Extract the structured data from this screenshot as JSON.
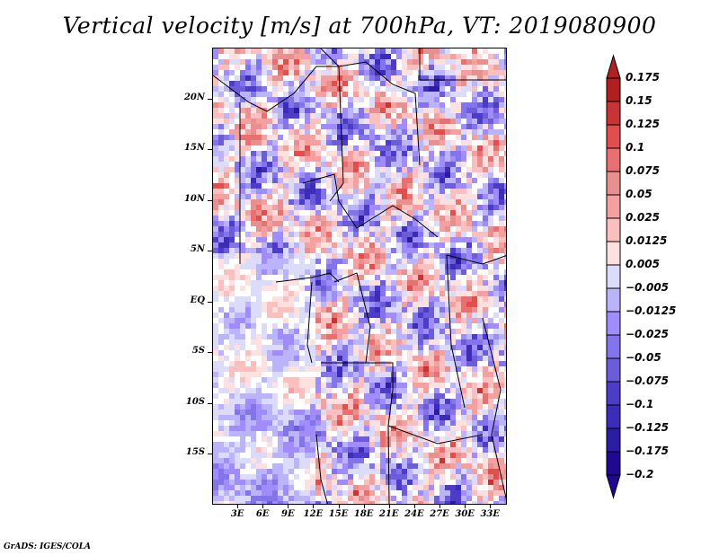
{
  "title": "Vertical velocity [m/s] at 700hPa, VT: 2019080900",
  "credit": "GrADS: IGES/COLA",
  "map": {
    "lat_labels": [
      "20N",
      "15N",
      "10N",
      "5N",
      "EQ",
      "5S",
      "10S",
      "15S"
    ],
    "lat_values": [
      20,
      15,
      10,
      5,
      0,
      -5,
      -10,
      -15
    ],
    "lat_range": [
      -20,
      25
    ],
    "lon_labels": [
      "3E",
      "6E",
      "9E",
      "12E",
      "15E",
      "18E",
      "21E",
      "24E",
      "27E",
      "30E",
      "33E"
    ],
    "lon_values": [
      3,
      6,
      9,
      12,
      15,
      18,
      21,
      24,
      27,
      30,
      33
    ],
    "lon_range": [
      0,
      35
    ],
    "field": "vertical velocity",
    "units": "m/s",
    "level": "700hPa",
    "valid_time": "2019080900"
  },
  "colorbar": {
    "labels": [
      "0.175",
      "0.15",
      "0.125",
      "0.1",
      "0.075",
      "0.05",
      "0.025",
      "0.0125",
      "0.005",
      "-0.005",
      "-0.0125",
      "-0.025",
      "-0.05",
      "-0.075",
      "-0.1",
      "-0.125",
      "-0.175",
      "-0.2"
    ],
    "colors": [
      "#b02020",
      "#c83434",
      "#e04e4e",
      "#e87070",
      "#e89090",
      "#f4a0a0",
      "#fac0c0",
      "#fde0e0",
      "#ffffff",
      "#dcdcfa",
      "#bcb4fa",
      "#a08cfa",
      "#8474ea",
      "#6c5cd8",
      "#4c3cc8",
      "#3c2cb8",
      "#2c1ca4",
      "#200890"
    ],
    "arrow_top_color": "#b02020",
    "arrow_bottom_color": "#200890"
  },
  "chart_data": {
    "type": "heatmap",
    "title": "Vertical velocity [m/s] at 700hPa, VT: 2019080900",
    "xlabel": "",
    "ylabel": "",
    "x_ticks": [
      "3E",
      "6E",
      "9E",
      "12E",
      "15E",
      "18E",
      "21E",
      "24E",
      "27E",
      "30E",
      "33E"
    ],
    "y_ticks": [
      "20N",
      "15N",
      "10N",
      "5N",
      "EQ",
      "5S",
      "10S",
      "15S"
    ],
    "x_range": [
      0,
      35
    ],
    "y_range": [
      -20,
      25
    ],
    "color_levels": [
      -0.2,
      -0.175,
      -0.125,
      -0.1,
      -0.075,
      -0.05,
      -0.025,
      -0.0125,
      -0.005,
      0.005,
      0.0125,
      0.025,
      0.05,
      0.075,
      0.1,
      0.125,
      0.15,
      0.175
    ],
    "legend": "right"
  }
}
